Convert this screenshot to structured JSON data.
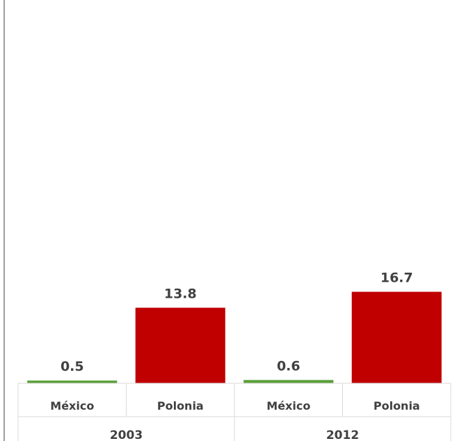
{
  "chart_data": {
    "type": "bar",
    "groups": [
      {
        "label": "2003",
        "bars": [
          {
            "category": "México",
            "value": 0.5,
            "value_label": "0.5",
            "color": "#5aa03a"
          },
          {
            "category": "Polonia",
            "value": 13.8,
            "value_label": "13.8",
            "color": "#c00000"
          }
        ]
      },
      {
        "label": "2012",
        "bars": [
          {
            "category": "México",
            "value": 0.6,
            "value_label": "0.6",
            "color": "#5aa03a"
          },
          {
            "category": "Polonia",
            "value": 16.7,
            "value_label": "16.7",
            "color": "#c00000"
          }
        ]
      }
    ],
    "title": "",
    "xlabel": "",
    "ylabel": "",
    "ylim": [
      0,
      70
    ],
    "grid": false,
    "legend": "none"
  }
}
